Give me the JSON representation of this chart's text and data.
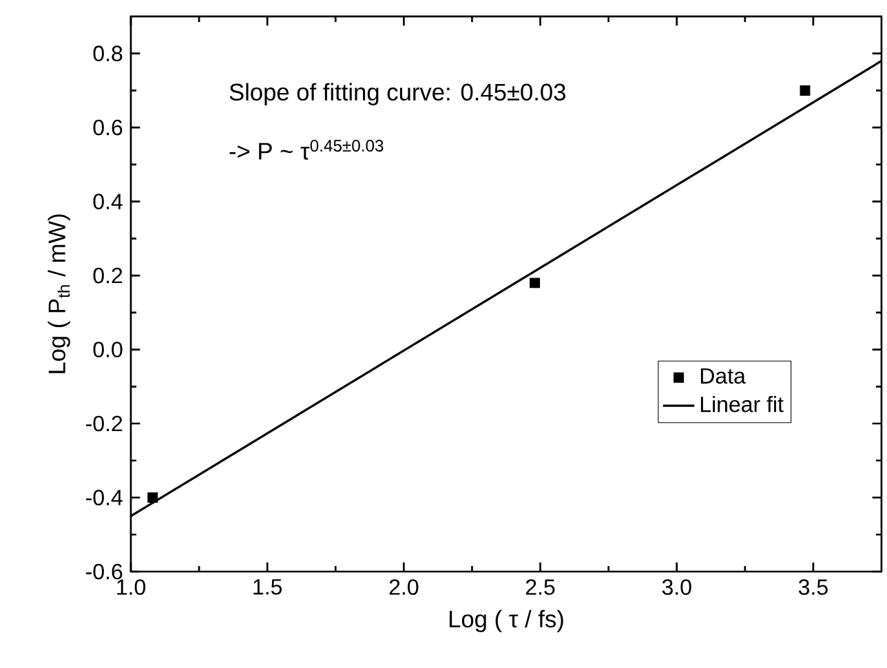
{
  "chart_data": {
    "type": "scatter",
    "xlabel": "Log ( τ / fs)",
    "ylabel": "Log ( P$_{th}$ / mW)",
    "annotations": [
      "Slope of fitting curve: 0.45±0.03",
      "-> P ~ τ$^{0.45±0.03}$"
    ],
    "series": [
      {
        "name": "Data",
        "marker": "square",
        "color": "#000000",
        "x": [
          1.08,
          2.48,
          3.47
        ],
        "values": [
          -0.4,
          0.18,
          0.7
        ]
      },
      {
        "name": "Linear fit",
        "type": "line",
        "marker": "none",
        "line_style": "solid",
        "color": "#000000",
        "x": [
          1.0,
          3.75
        ],
        "values": [
          -0.45,
          0.78
        ]
      }
    ],
    "xlim": [
      1.0,
      3.75
    ],
    "ylim": [
      -0.6,
      0.9
    ],
    "xticks": [
      {
        "value": 1.0,
        "label": "1.0"
      },
      1.5,
      {
        "value": 2.0,
        "label": "2.0"
      },
      2.5,
      {
        "value": 3.0,
        "label": "3.0"
      },
      3.5
    ],
    "yticks": [
      -0.6,
      -0.4,
      -0.2,
      {
        "value": 0.0,
        "label": "0.0"
      },
      0.2,
      0.4,
      0.6,
      0.8
    ],
    "grid": false,
    "legend": "right"
  }
}
